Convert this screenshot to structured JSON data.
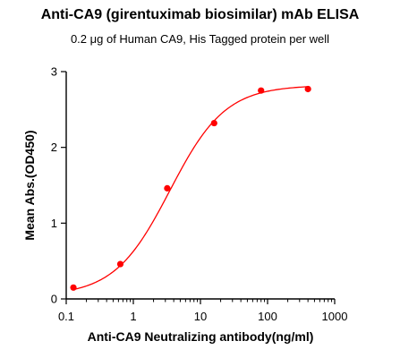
{
  "chart_data": {
    "type": "scatter",
    "title": "Anti-CA9 (girentuximab biosimilar) mAb ELISA",
    "subtitle": "0.2 μg of Human CA9, His Tagged protein per well",
    "xlabel": "Anti-CA9 Neutralizing antibody(ng/ml)",
    "ylabel": "Mean Abs.(OD450)",
    "x_scale": "log",
    "xlim": [
      0.1,
      1000
    ],
    "ylim": [
      0,
      3
    ],
    "x_ticks": [
      0.1,
      1,
      10,
      100,
      1000
    ],
    "x_tick_labels": [
      "0.1",
      "1",
      "10",
      "100",
      "1000"
    ],
    "y_ticks": [
      0,
      1,
      2,
      3
    ],
    "y_tick_labels": [
      "0",
      "1",
      "2",
      "3"
    ],
    "grid": false,
    "series": [
      {
        "points": [
          {
            "x": 0.128,
            "y": 0.15
          },
          {
            "x": 0.64,
            "y": 0.46
          },
          {
            "x": 3.2,
            "y": 1.46
          },
          {
            "x": 16,
            "y": 2.32
          },
          {
            "x": 80,
            "y": 2.75
          },
          {
            "x": 400,
            "y": 2.77
          }
        ],
        "error": [
          0,
          0.04,
          0,
          0,
          0,
          0
        ],
        "fit": {
          "model": "4PL",
          "bottom": 0.04,
          "top": 2.82,
          "ec50": 3.5,
          "hill": 1.05
        },
        "color": "#ff0000"
      }
    ]
  }
}
